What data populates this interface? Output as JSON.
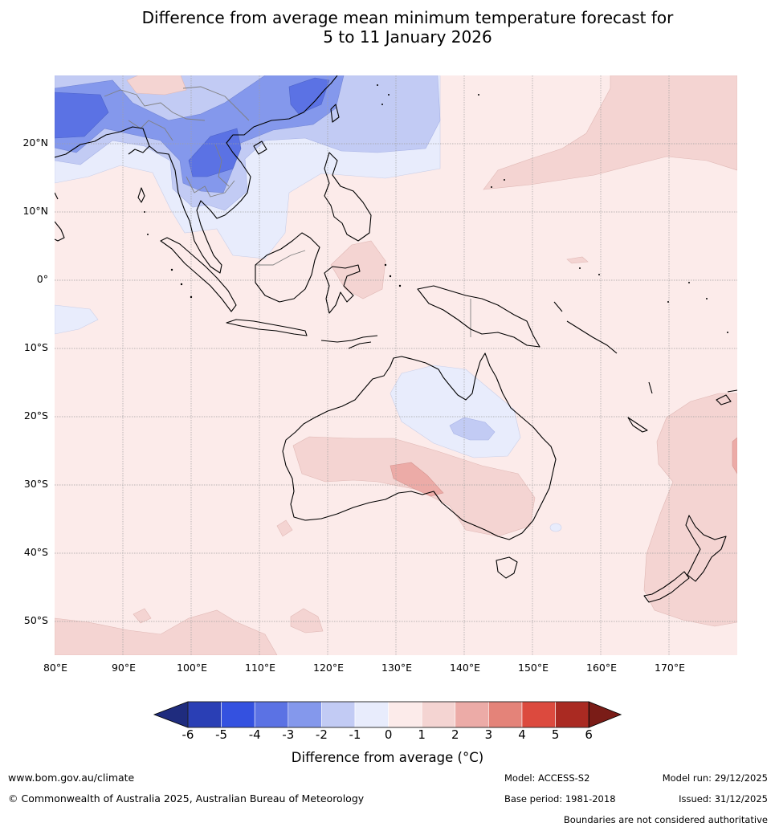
{
  "title": {
    "line1": "Difference from average mean minimum temperature forecast for",
    "line2": "5 to 11 January 2026"
  },
  "map": {
    "lat_labels": [
      "20°N",
      "10°N",
      "0°",
      "10°S",
      "20°S",
      "30°S",
      "40°S",
      "50°S"
    ],
    "lon_labels": [
      "80°E",
      "90°E",
      "100°E",
      "110°E",
      "120°E",
      "130°E",
      "140°E",
      "150°E",
      "160°E",
      "170°E"
    ],
    "extent": {
      "lon_min": 80,
      "lon_max": 180,
      "lat_min": -55,
      "lat_max": 30
    },
    "colors": {
      "ocean_default": "#fcebea",
      "land_outline": "#000000",
      "border_outline": "#808080",
      "grid": "#a0a0a0"
    }
  },
  "legend": {
    "title": "Difference from average (°C)",
    "ticks": [
      "-6",
      "-5",
      "-4",
      "-3",
      "-2",
      "-1",
      "0",
      "1",
      "2",
      "3",
      "4",
      "5",
      "6"
    ],
    "colors": [
      "#1f2c7e",
      "#2a3fb5",
      "#3451e0",
      "#5b72e4",
      "#8498ec",
      "#c2cbf4",
      "#e8ecfc",
      "#fcebea",
      "#f4d4d2",
      "#ecaba7",
      "#e48379",
      "#dc4a3e",
      "#aa2a22",
      "#7a1c17"
    ]
  },
  "footer": {
    "website": "www.bom.gov.au/climate",
    "copyright": "© Commonwealth of Australia 2025, Australian Bureau of Meteorology",
    "model": "Model: ACCESS-S2",
    "model_run": "Model run: 29/12/2025",
    "base_period": "Base period: 1981-2018",
    "issued": "Issued: 31/12/2025",
    "disclaimer": "Boundaries are not considered authoritative"
  }
}
